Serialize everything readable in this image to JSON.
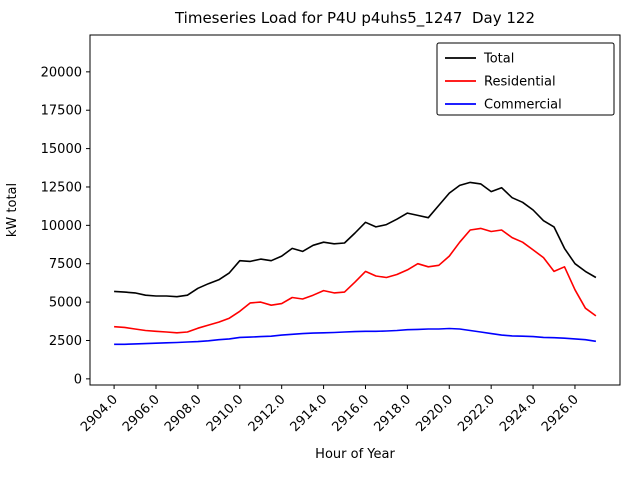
{
  "chart_data": {
    "type": "line",
    "title": "Timeseries Load for P4U p4uhs5_1247  Day 122",
    "xlabel": "Hour of Year",
    "ylabel": "kW total",
    "xlim": [
      2902.85,
      2928.15
    ],
    "ylim": [
      -400,
      22400
    ],
    "grid": false,
    "legend_position": "upper right",
    "x_ticks": [
      2904,
      2906,
      2908,
      2910,
      2912,
      2914,
      2916,
      2918,
      2920,
      2922,
      2924,
      2926
    ],
    "x_tick_labels": [
      "2904.0",
      "2906.0",
      "2908.0",
      "2910.0",
      "2912.0",
      "2914.0",
      "2916.0",
      "2918.0",
      "2920.0",
      "2922.0",
      "2924.0",
      "2926.0"
    ],
    "y_ticks": [
      0,
      2500,
      5000,
      7500,
      10000,
      12500,
      15000,
      17500,
      20000
    ],
    "y_tick_labels": [
      "0",
      "2500",
      "5000",
      "7500",
      "10000",
      "12500",
      "15000",
      "17500",
      "20000"
    ],
    "x": [
      2904.0,
      2904.5,
      2905.0,
      2905.5,
      2906.0,
      2906.5,
      2907.0,
      2907.5,
      2908.0,
      2908.5,
      2909.0,
      2909.5,
      2910.0,
      2910.5,
      2911.0,
      2911.5,
      2912.0,
      2912.5,
      2913.0,
      2913.5,
      2914.0,
      2914.5,
      2915.0,
      2915.5,
      2916.0,
      2916.5,
      2917.0,
      2917.5,
      2918.0,
      2918.5,
      2919.0,
      2919.5,
      2920.0,
      2920.5,
      2921.0,
      2921.5,
      2922.0,
      2922.5,
      2923.0,
      2923.5,
      2924.0,
      2924.5,
      2925.0,
      2925.5,
      2926.0,
      2926.5,
      2927.0
    ],
    "series": [
      {
        "name": "Total",
        "color": "#000000",
        "values": [
          5700,
          5650,
          5600,
          5450,
          5400,
          5400,
          5350,
          5450,
          5900,
          6200,
          6450,
          6900,
          7700,
          7650,
          7800,
          7700,
          8000,
          8500,
          8300,
          8700,
          8900,
          8800,
          8850,
          9500,
          10200,
          9900,
          10050,
          10400,
          10800,
          10650,
          10500,
          11300,
          12100,
          12600,
          12800,
          12700,
          12200,
          12450,
          11800,
          11500,
          11000,
          10300,
          9900,
          8500,
          7500,
          7000,
          6600
        ]
      },
      {
        "name": "Residential",
        "color": "#ff0000",
        "values": [
          3400,
          3350,
          3250,
          3150,
          3100,
          3050,
          3000,
          3050,
          3300,
          3500,
          3700,
          3950,
          4400,
          4950,
          5000,
          4800,
          4900,
          5300,
          5200,
          5450,
          5750,
          5600,
          5650,
          6300,
          7000,
          6700,
          6600,
          6800,
          7100,
          7500,
          7300,
          7400,
          8000,
          8900,
          9700,
          9800,
          9600,
          9700,
          9200,
          8900,
          8400,
          7900,
          7000,
          7300,
          5800,
          4600,
          4100
        ]
      },
      {
        "name": "Commercial",
        "color": "#0000ff",
        "values": [
          2250,
          2250,
          2280,
          2300,
          2320,
          2350,
          2370,
          2400,
          2430,
          2480,
          2550,
          2600,
          2700,
          2720,
          2750,
          2780,
          2850,
          2900,
          2950,
          2980,
          3000,
          3020,
          3050,
          3080,
          3100,
          3100,
          3120,
          3150,
          3200,
          3220,
          3250,
          3250,
          3280,
          3250,
          3150,
          3050,
          2950,
          2850,
          2800,
          2780,
          2750,
          2700,
          2680,
          2650,
          2600,
          2550,
          2450
        ]
      }
    ]
  }
}
